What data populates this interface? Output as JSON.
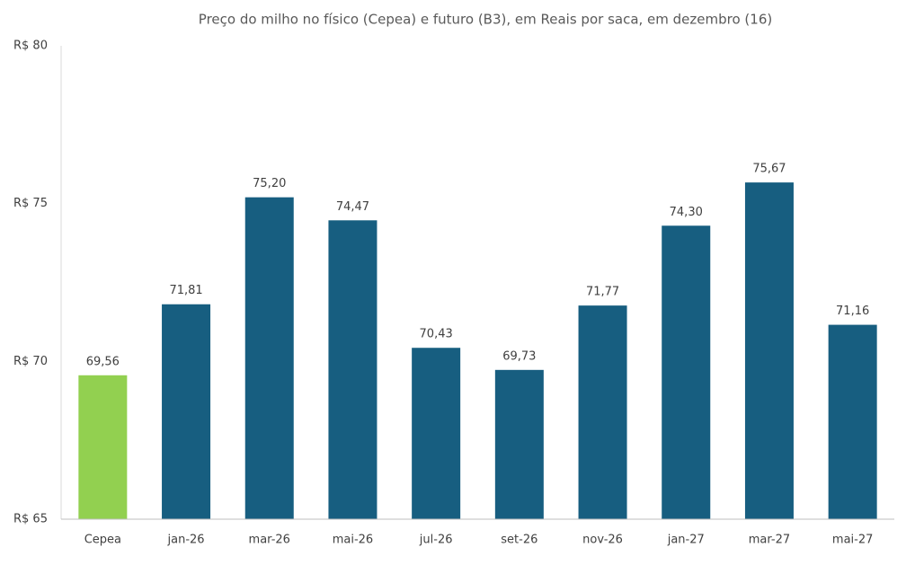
{
  "chart_data": {
    "type": "bar",
    "title": "Preço do milho no físico (Cepea) e futuro (B3), em Reais por saca, em dezembro (16)",
    "categories": [
      "Cepea",
      "jan-26",
      "mar-26",
      "mai-26",
      "jul-26",
      "set-26",
      "nov-26",
      "jan-27",
      "mar-27",
      "mai-27"
    ],
    "values": [
      69.56,
      71.81,
      75.2,
      74.47,
      70.43,
      69.73,
      71.77,
      74.3,
      75.67,
      71.16
    ],
    "value_labels": [
      "69,56",
      "71,81",
      "75,20",
      "74,47",
      "70,43",
      "69,73",
      "71,77",
      "74,30",
      "75,67",
      "71,16"
    ],
    "colors": [
      "#92d050",
      "#175e80",
      "#175e80",
      "#175e80",
      "#175e80",
      "#175e80",
      "#175e80",
      "#175e80",
      "#175e80",
      "#175e80"
    ],
    "ylim": [
      65,
      80
    ],
    "yticks": [
      {
        "value": 65,
        "label": "R$ 65"
      },
      {
        "value": 70,
        "label": "R$ 70"
      },
      {
        "value": 75,
        "label": "R$ 75"
      },
      {
        "value": 80,
        "label": "R$ 80"
      }
    ],
    "grid": false
  }
}
